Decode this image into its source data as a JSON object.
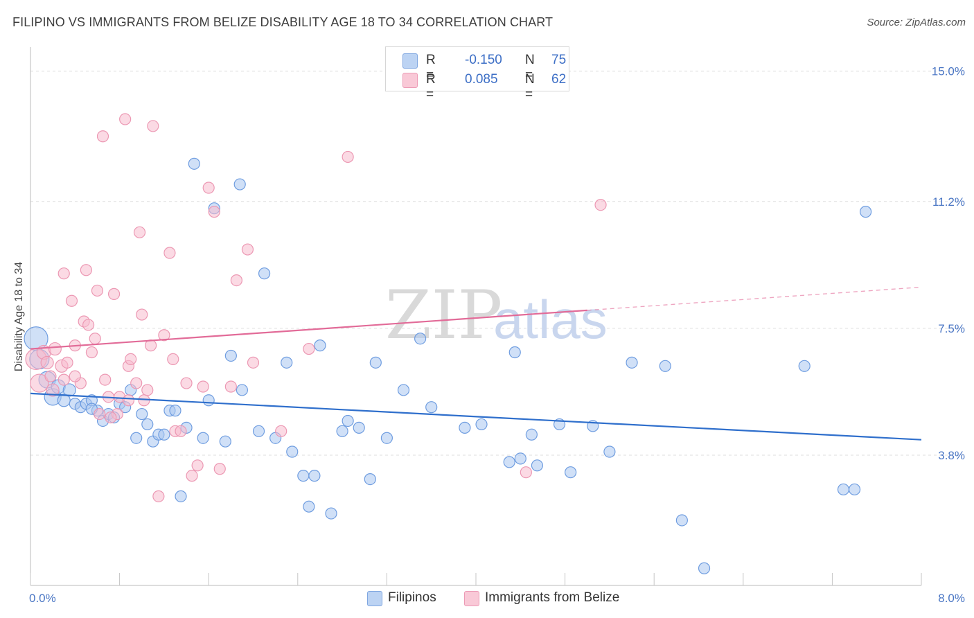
{
  "header": {
    "title": "FILIPINO VS IMMIGRANTS FROM BELIZE DISABILITY AGE 18 TO 34 CORRELATION CHART",
    "source": "Source: ZipAtlas.com"
  },
  "legend": {
    "rows": [
      {
        "r_label": "R =",
        "r_value": "-0.150",
        "n_label": "N =",
        "n_value": "75"
      },
      {
        "r_label": "R =",
        "r_value": "0.085",
        "n_label": "N =",
        "n_value": "62"
      }
    ]
  },
  "watermark": {
    "zip": "ZIP",
    "atlas": "atlas"
  },
  "colors": {
    "series_a_fill": "#a9c6f0",
    "series_a_stroke": "#6f9de0",
    "series_a_line": "#2f6fcc",
    "series_b_fill": "#f7bccd",
    "series_b_stroke": "#ec98b3",
    "series_b_line": "#e26b98",
    "grid": "#dddddd",
    "tick_text": "#4a76c4"
  },
  "chart_data": {
    "type": "scatter",
    "title": "FILIPINO VS IMMIGRANTS FROM BELIZE DISABILITY AGE 18 TO 34 CORRELATION CHART",
    "xlabel": "",
    "ylabel": "Disability Age 18 to 34",
    "xlim": [
      0.0,
      8.0
    ],
    "ylim": [
      0.0,
      15.5
    ],
    "x_tick_labels": [
      "0.0%",
      "8.0%"
    ],
    "y_ticks": [
      {
        "value": 3.8,
        "label": "3.8%"
      },
      {
        "value": 7.5,
        "label": "7.5%"
      },
      {
        "value": 11.2,
        "label": "11.2%"
      },
      {
        "value": 15.0,
        "label": "15.0%"
      }
    ],
    "grid": true,
    "legend_position": "bottom",
    "series": [
      {
        "name": "Filipinos",
        "r": -0.15,
        "n": 75,
        "trend": {
          "x0": 0.0,
          "y0": 5.6,
          "x1": 8.0,
          "y1": 4.25,
          "solid_until": 8.0
        },
        "points": [
          [
            0.05,
            7.2,
            17
          ],
          [
            0.08,
            6.6,
            14
          ],
          [
            0.15,
            6.0,
            12
          ],
          [
            0.2,
            5.5,
            12
          ],
          [
            0.25,
            5.8,
            10
          ],
          [
            0.3,
            5.4,
            9
          ],
          [
            0.35,
            5.7,
            9
          ],
          [
            0.4,
            5.3,
            8
          ],
          [
            0.45,
            5.2,
            8
          ],
          [
            0.5,
            5.3,
            8
          ],
          [
            0.55,
            5.4,
            8
          ],
          [
            0.6,
            5.1,
            8
          ],
          [
            0.65,
            4.8,
            8
          ],
          [
            0.7,
            5.0,
            8
          ],
          [
            0.75,
            4.9,
            8
          ],
          [
            0.8,
            5.3,
            8
          ],
          [
            0.85,
            5.2,
            8
          ],
          [
            0.9,
            5.7,
            8
          ],
          [
            0.95,
            4.3,
            8
          ],
          [
            1.0,
            5.0,
            8
          ],
          [
            1.05,
            4.7,
            8
          ],
          [
            1.1,
            4.2,
            8
          ],
          [
            1.15,
            4.4,
            8
          ],
          [
            1.2,
            4.4,
            8
          ],
          [
            1.25,
            5.1,
            8
          ],
          [
            1.3,
            5.1,
            8
          ],
          [
            1.35,
            2.6,
            8
          ],
          [
            1.4,
            4.6,
            8
          ],
          [
            1.55,
            4.3,
            8
          ],
          [
            1.6,
            5.4,
            8
          ],
          [
            1.65,
            11.0,
            8
          ],
          [
            1.75,
            4.2,
            8
          ],
          [
            1.8,
            6.7,
            8
          ],
          [
            1.88,
            11.7,
            8
          ],
          [
            1.9,
            5.7,
            8
          ],
          [
            2.05,
            4.5,
            8
          ],
          [
            2.1,
            9.1,
            8
          ],
          [
            2.2,
            4.3,
            8
          ],
          [
            2.3,
            6.5,
            8
          ],
          [
            2.35,
            3.9,
            8
          ],
          [
            2.45,
            3.2,
            8
          ],
          [
            2.5,
            2.3,
            8
          ],
          [
            2.55,
            3.2,
            8
          ],
          [
            2.6,
            7.0,
            8
          ],
          [
            2.7,
            2.1,
            8
          ],
          [
            2.8,
            4.5,
            8
          ],
          [
            2.85,
            4.8,
            8
          ],
          [
            2.95,
            4.6,
            8
          ],
          [
            3.05,
            3.1,
            8
          ],
          [
            3.1,
            6.5,
            8
          ],
          [
            3.2,
            4.3,
            8
          ],
          [
            3.35,
            5.7,
            8
          ],
          [
            3.5,
            7.2,
            8
          ],
          [
            3.6,
            5.2,
            8
          ],
          [
            3.9,
            4.6,
            8
          ],
          [
            4.05,
            4.7,
            8
          ],
          [
            4.3,
            3.6,
            8
          ],
          [
            4.35,
            6.8,
            8
          ],
          [
            4.4,
            3.7,
            8
          ],
          [
            4.5,
            4.4,
            8
          ],
          [
            4.55,
            3.5,
            8
          ],
          [
            4.75,
            4.7,
            8
          ],
          [
            4.85,
            3.3,
            8
          ],
          [
            5.05,
            4.65,
            8
          ],
          [
            5.2,
            3.9,
            8
          ],
          [
            5.4,
            6.5,
            8
          ],
          [
            5.7,
            6.4,
            8
          ],
          [
            5.85,
            1.9,
            8
          ],
          [
            6.05,
            0.5,
            8
          ],
          [
            6.95,
            6.4,
            8
          ],
          [
            7.3,
            2.8,
            8
          ],
          [
            7.4,
            2.8,
            8
          ],
          [
            7.5,
            10.9,
            8
          ],
          [
            1.47,
            12.3,
            8
          ],
          [
            0.55,
            5.15,
            8
          ]
        ]
      },
      {
        "name": "Immigrants from Belize",
        "r": 0.085,
        "n": 62,
        "trend": {
          "x0": 0.0,
          "y0": 6.9,
          "x1": 8.0,
          "y1": 8.7,
          "solid_until": 5.0
        },
        "points": [
          [
            0.05,
            6.6,
            15
          ],
          [
            0.08,
            5.9,
            13
          ],
          [
            0.12,
            6.8,
            10
          ],
          [
            0.15,
            6.5,
            9
          ],
          [
            0.2,
            5.7,
            9
          ],
          [
            0.22,
            6.9,
            9
          ],
          [
            0.28,
            6.4,
            9
          ],
          [
            0.3,
            9.1,
            8
          ],
          [
            0.33,
            6.5,
            8
          ],
          [
            0.37,
            8.3,
            8
          ],
          [
            0.4,
            7.0,
            8
          ],
          [
            0.45,
            5.9,
            8
          ],
          [
            0.48,
            7.7,
            8
          ],
          [
            0.5,
            9.2,
            8
          ],
          [
            0.52,
            7.6,
            8
          ],
          [
            0.55,
            6.8,
            8
          ],
          [
            0.58,
            7.2,
            8
          ],
          [
            0.6,
            8.6,
            8
          ],
          [
            0.65,
            13.1,
            8
          ],
          [
            0.67,
            6.0,
            8
          ],
          [
            0.7,
            5.5,
            8
          ],
          [
            0.75,
            8.5,
            8
          ],
          [
            0.78,
            5.0,
            8
          ],
          [
            0.8,
            5.5,
            8
          ],
          [
            0.85,
            13.6,
            8
          ],
          [
            0.88,
            6.4,
            8
          ],
          [
            0.9,
            6.6,
            8
          ],
          [
            0.95,
            5.9,
            8
          ],
          [
            0.98,
            10.3,
            8
          ],
          [
            1.0,
            7.9,
            8
          ],
          [
            1.02,
            5.4,
            8
          ],
          [
            1.05,
            5.7,
            8
          ],
          [
            1.08,
            7.0,
            8
          ],
          [
            1.1,
            13.4,
            8
          ],
          [
            1.15,
            2.6,
            8
          ],
          [
            1.2,
            7.3,
            8
          ],
          [
            1.25,
            9.7,
            8
          ],
          [
            1.28,
            6.6,
            8
          ],
          [
            1.3,
            4.5,
            8
          ],
          [
            1.35,
            4.5,
            8
          ],
          [
            1.4,
            5.9,
            8
          ],
          [
            1.45,
            3.2,
            8
          ],
          [
            1.5,
            3.5,
            8
          ],
          [
            1.55,
            5.8,
            8
          ],
          [
            1.6,
            11.6,
            8
          ],
          [
            1.65,
            10.9,
            8
          ],
          [
            1.7,
            3.4,
            8
          ],
          [
            1.8,
            5.8,
            8
          ],
          [
            1.85,
            8.9,
            8
          ],
          [
            1.95,
            9.8,
            8
          ],
          [
            2.0,
            6.5,
            8
          ],
          [
            2.25,
            4.5,
            8
          ],
          [
            2.5,
            6.9,
            8
          ],
          [
            2.85,
            12.5,
            8
          ],
          [
            4.45,
            3.3,
            8
          ],
          [
            5.12,
            11.1,
            8
          ],
          [
            0.4,
            6.1,
            8
          ],
          [
            0.62,
            5.0,
            8
          ],
          [
            0.3,
            6.0,
            8
          ],
          [
            0.72,
            4.9,
            8
          ],
          [
            0.18,
            6.1,
            8
          ],
          [
            0.88,
            5.4,
            8
          ]
        ]
      }
    ]
  },
  "bottom_legend": [
    {
      "label": "Filipinos"
    },
    {
      "label": "Immigrants from Belize"
    }
  ]
}
